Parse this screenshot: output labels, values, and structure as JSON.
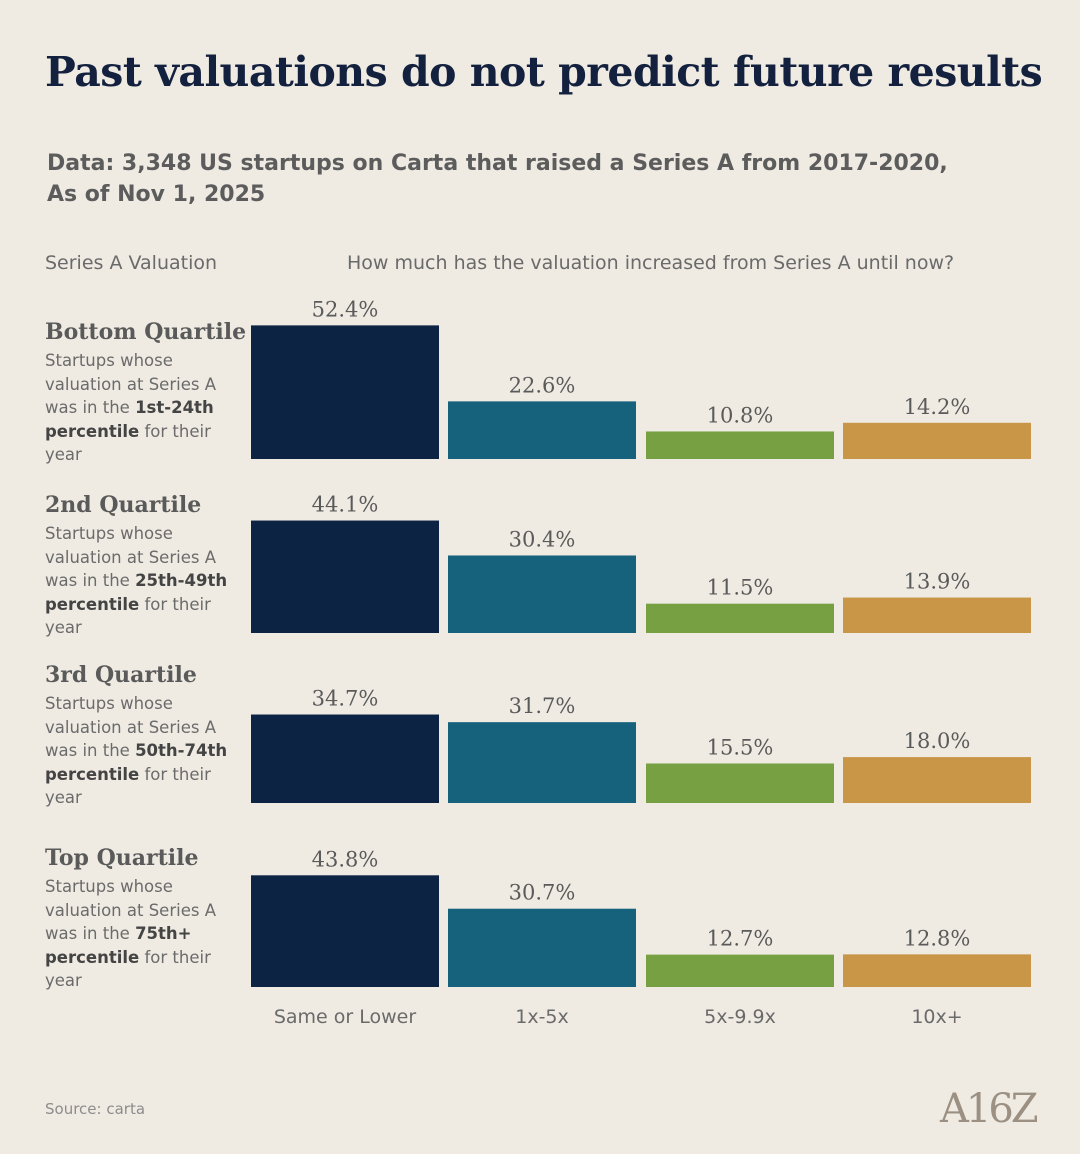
{
  "title": "Past valuations do not predict future results",
  "subtitle_line1": "Data: 3,348 US startups on Carta that raised a Series A from 2017-2020,",
  "subtitle_line2": "As of Nov 1, 2025",
  "row_header": "Series A Valuation",
  "column_header": "How much has the valuation increased from Series A until now?",
  "rows": [
    {
      "title": "Bottom Quartile",
      "desc_pre": "Startups whose valuation at Series A was in the ",
      "desc_bold": "1st-24th percentile",
      "desc_post": " for their year"
    },
    {
      "title": "2nd Quartile",
      "desc_pre": "Startups whose valuation at Series A was in the ",
      "desc_bold": "25th-49th percentile",
      "desc_post": " for their year"
    },
    {
      "title": "3rd Quartile",
      "desc_pre": "Startups whose valuation at Series A was in the ",
      "desc_bold": "50th-74th percentile",
      "desc_post": " for their year"
    },
    {
      "title": "Top Quartile",
      "desc_pre": "Startups whose valuation at Series A was in the ",
      "desc_bold": "75th+ percentile",
      "desc_post": " for their year"
    }
  ],
  "source": "Source: carta",
  "logo": "A16Z",
  "colors": [
    "#0c2344",
    "#16617c",
    "#76a042",
    "#c99546"
  ],
  "chart_data": {
    "type": "bar",
    "title": "Past valuations do not predict future results",
    "categories": [
      "Same or Lower",
      "1x-5x",
      "5x-9.9x",
      "10x+"
    ],
    "series": [
      {
        "name": "Bottom Quartile",
        "values": [
          52.4,
          22.6,
          10.8,
          14.2
        ]
      },
      {
        "name": "2nd Quartile",
        "values": [
          44.1,
          30.4,
          11.5,
          13.9
        ]
      },
      {
        "name": "3rd Quartile",
        "values": [
          34.7,
          31.7,
          15.5,
          18.0
        ]
      },
      {
        "name": "Top Quartile",
        "values": [
          43.8,
          30.7,
          12.7,
          12.8
        ]
      }
    ],
    "value_format": "%",
    "grid": false,
    "legend": "none"
  }
}
